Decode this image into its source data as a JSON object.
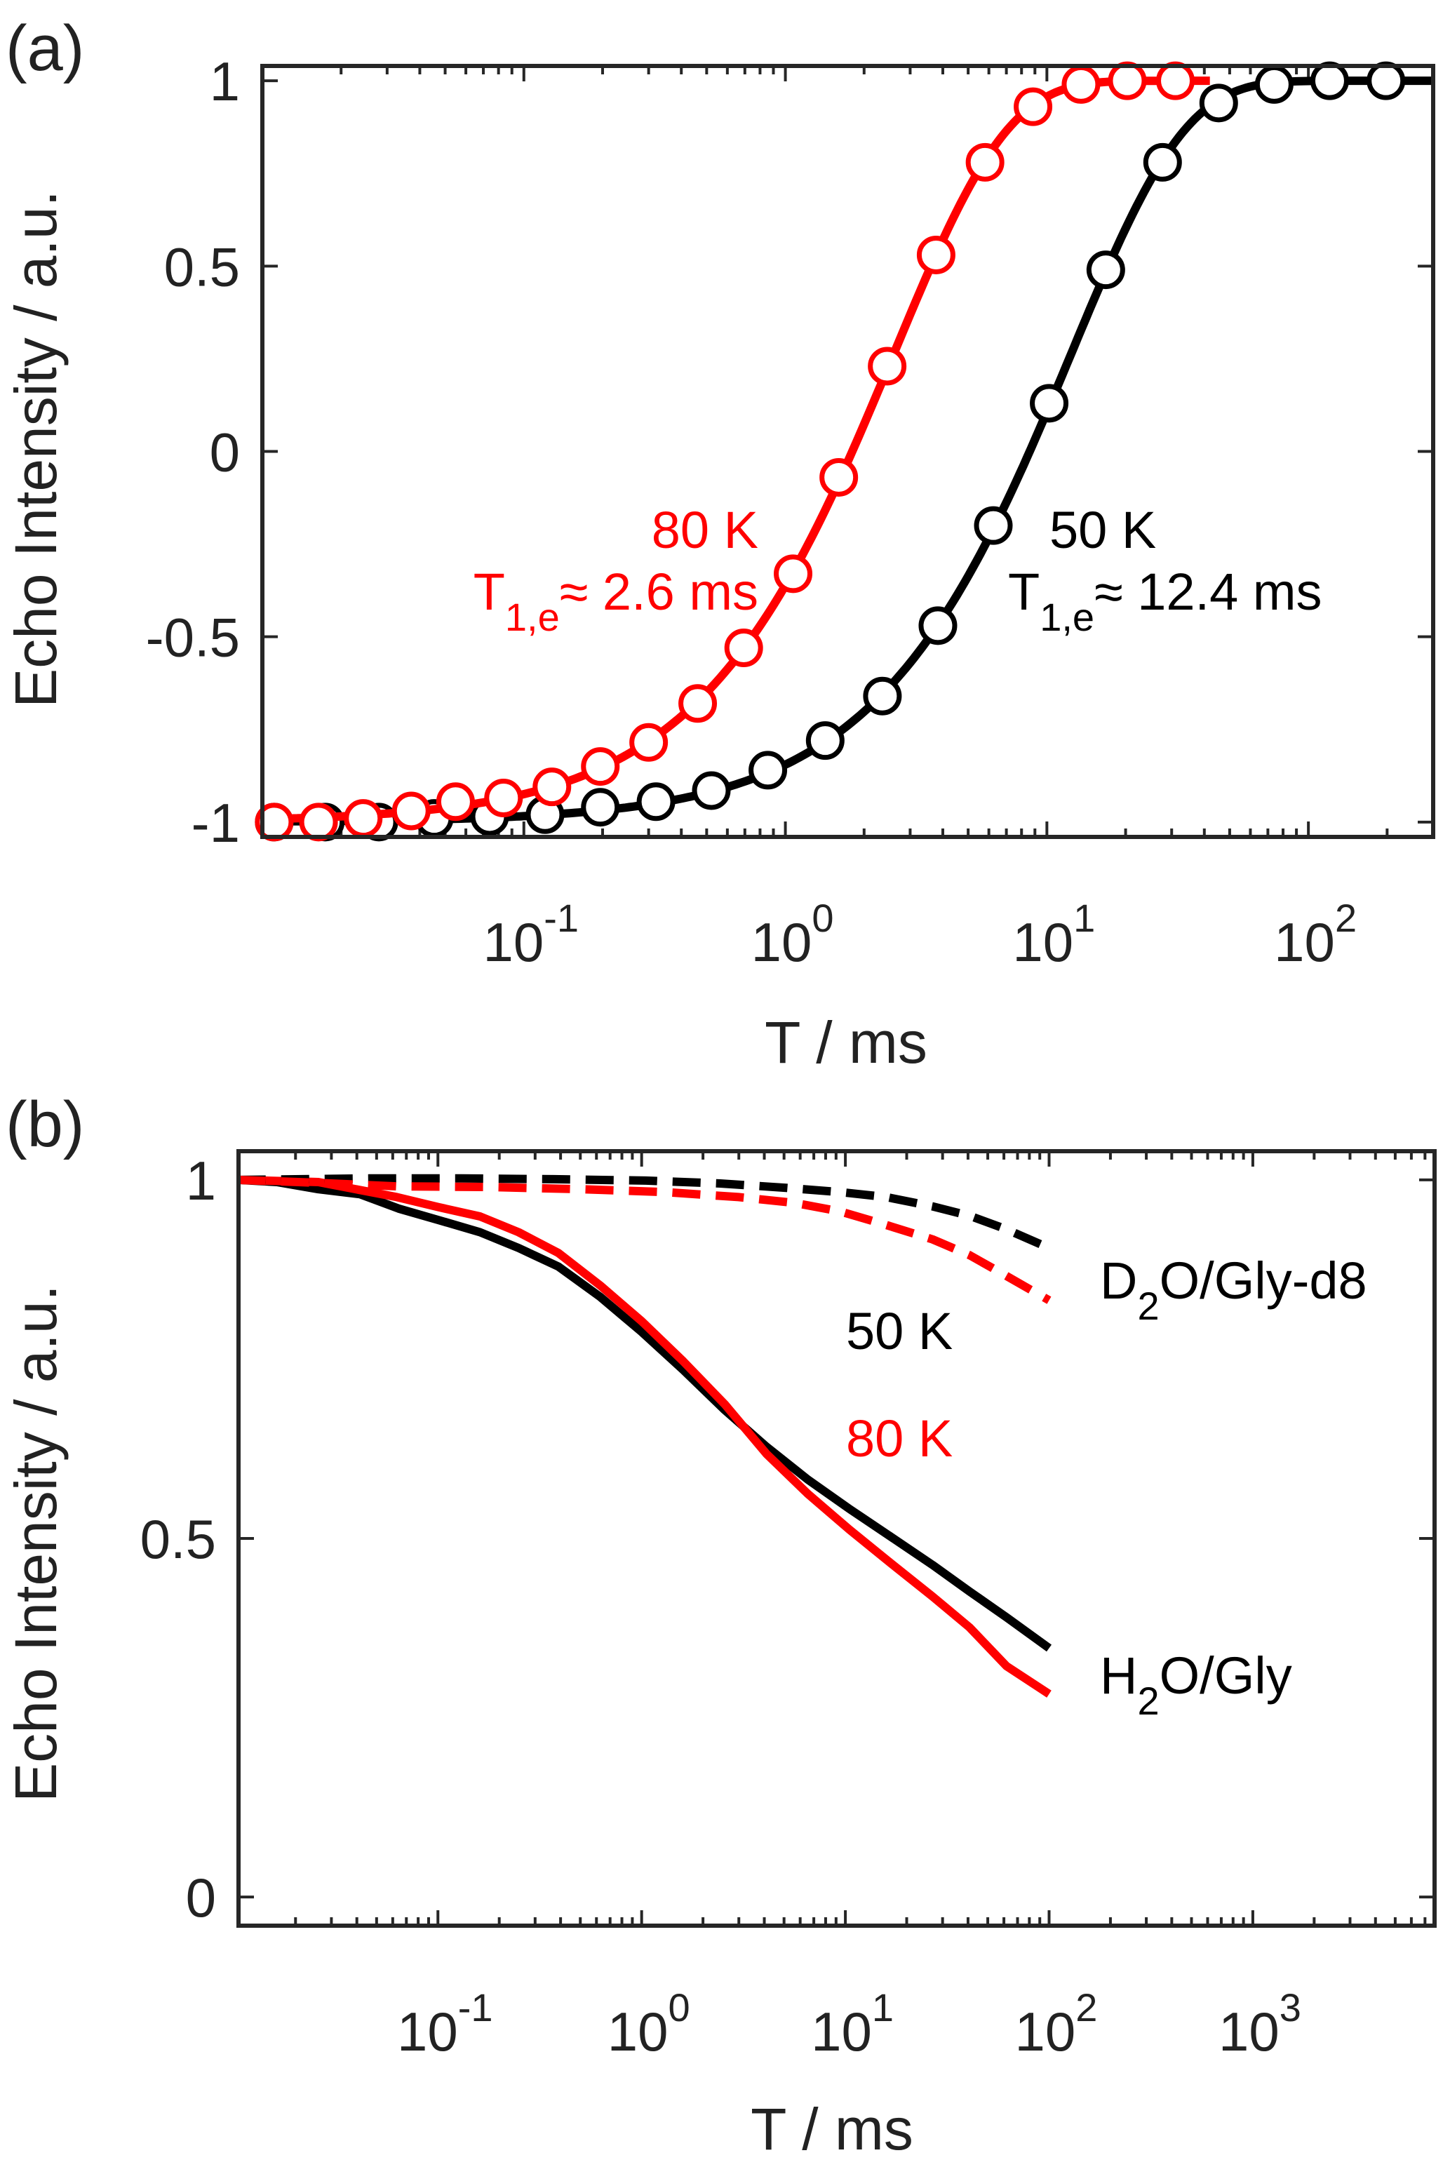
{
  "colors": {
    "black": "#000000",
    "red": "#ff0000",
    "axis": "#262626"
  },
  "chart_data": [
    {
      "panel_label": "(a)",
      "type": "scatter",
      "xscale": "log",
      "xlabel": "T / ms",
      "ylabel": "Echo Intensity / a.u.",
      "xlim": [
        0.01,
        300
      ],
      "ylim": [
        -1.04,
        1.04
      ],
      "yticks": [
        -1,
        -0.5,
        0,
        0.5,
        1
      ],
      "ytick_labels": [
        "-1",
        "-0.5",
        "0",
        "0.5",
        "1"
      ],
      "xticks": [
        0.1,
        1,
        10,
        100
      ],
      "xtick_labels": [
        {
          "base": "10",
          "exp": "-1"
        },
        {
          "base": "10",
          "exp": "0"
        },
        {
          "base": "10",
          "exp": "1"
        },
        {
          "base": "10",
          "exp": "2"
        }
      ],
      "annotations": [
        {
          "text": "80 K",
          "color": "red"
        },
        {
          "text_main": "T",
          "text_sub": "1,e",
          "text_rest": "≈ 2.6 ms",
          "color": "red"
        },
        {
          "text": "50 K",
          "color": "black"
        },
        {
          "text_main": "T",
          "text_sub": "1,e",
          "text_rest": "≈ 12.4 ms",
          "color": "black"
        }
      ],
      "series": [
        {
          "name": "50 K",
          "color": "black",
          "fit": {
            "model": "1-2*exp(-T/T1)",
            "T1": 12.4,
            "x_range": [
              0.01,
              300
            ]
          },
          "points": [
            [
              0.0111,
              -1
            ],
            [
              0.0174,
              -1
            ],
            [
              0.0279,
              -1
            ],
            [
              0.0454,
              -0.99
            ],
            [
              0.074,
              -0.985
            ],
            [
              0.1205,
              -0.98
            ],
            [
              0.196,
              -0.96
            ],
            [
              0.32,
              -0.945
            ],
            [
              0.521,
              -0.915
            ],
            [
              0.857,
              -0.86
            ],
            [
              1.42,
              -0.78
            ],
            [
              2.35,
              -0.66
            ],
            [
              3.83,
              -0.47
            ],
            [
              6.24,
              -0.2
            ],
            [
              10.2,
              0.13
            ],
            [
              16.8,
              0.49
            ],
            [
              27.7,
              0.78
            ],
            [
              45.4,
              0.94
            ],
            [
              74.0,
              0.99
            ],
            [
              120.6,
              1
            ],
            [
              198,
              1
            ]
          ]
        },
        {
          "name": "80 K",
          "color": "red",
          "fit": {
            "model": "1-2*exp(-T/T1)",
            "T1": 2.6,
            "x_range": [
              0.01,
              42
            ]
          },
          "points": [
            [
              0.0111,
              -1
            ],
            [
              0.0164,
              -1
            ],
            [
              0.0243,
              -0.99
            ],
            [
              0.0371,
              -0.97
            ],
            [
              0.0548,
              -0.945
            ],
            [
              0.0836,
              -0.935
            ],
            [
              0.128,
              -0.905
            ],
            [
              0.196,
              -0.85
            ],
            [
              0.3,
              -0.785
            ],
            [
              0.462,
              -0.68
            ],
            [
              0.693,
              -0.53
            ],
            [
              1.07,
              -0.33
            ],
            [
              1.6,
              -0.07
            ],
            [
              2.45,
              0.23
            ],
            [
              3.77,
              0.53
            ],
            [
              5.8,
              0.78
            ],
            [
              8.85,
              0.93
            ],
            [
              13.5,
              0.99
            ],
            [
              20.3,
              1
            ],
            [
              31.0,
              1
            ]
          ]
        }
      ]
    },
    {
      "panel_label": "(b)",
      "type": "line",
      "xscale": "log",
      "xlabel": "T / ms",
      "ylabel": "Echo Intensity / a.u.",
      "xlim": [
        0.0105,
        7800
      ],
      "ylim": [
        -0.04,
        1.04
      ],
      "yticks": [
        0,
        0.5,
        1
      ],
      "ytick_labels": [
        "0",
        "0.5",
        "1"
      ],
      "xticks": [
        0.1,
        1,
        10,
        100,
        1000
      ],
      "xtick_labels": [
        {
          "base": "10",
          "exp": "-1"
        },
        {
          "base": "10",
          "exp": "0"
        },
        {
          "base": "10",
          "exp": "1"
        },
        {
          "base": "10",
          "exp": "2"
        },
        {
          "base": "10",
          "exp": "3"
        }
      ],
      "annotations": [
        {
          "text_main": "D",
          "text_sub": "2",
          "text_rest": "O/Gly-d8",
          "color": "black"
        },
        {
          "text": "50 K",
          "color": "black"
        },
        {
          "text": "80 K",
          "color": "red"
        },
        {
          "text_main": "H",
          "text_sub": "2",
          "text_rest": "O/Gly",
          "color": "black"
        }
      ],
      "series": [
        {
          "name": "H2O/Gly 50 K",
          "color": "black",
          "style": "solid",
          "points": [
            [
              0.0104,
              1
            ],
            [
              0.0162,
              0.997
            ],
            [
              0.0259,
              0.987
            ],
            [
              0.0414,
              0.98
            ],
            [
              0.0641,
              0.96
            ],
            [
              0.1005,
              0.944
            ],
            [
              0.161,
              0.927
            ],
            [
              0.249,
              0.905
            ],
            [
              0.391,
              0.879
            ],
            [
              0.625,
              0.837
            ],
            [
              1,
              0.788
            ],
            [
              1.6,
              0.735
            ],
            [
              2.56,
              0.679
            ],
            [
              4.1,
              0.628
            ],
            [
              6.55,
              0.582
            ],
            [
              10.5,
              0.541
            ],
            [
              16.8,
              0.502
            ],
            [
              26.8,
              0.463
            ],
            [
              40.7,
              0.426
            ],
            [
              61.8,
              0.39
            ],
            [
              100,
              0.347
            ]
          ]
        },
        {
          "name": "H2O/Gly 80 K",
          "color": "red",
          "style": "solid",
          "points": [
            [
              0.0104,
              1
            ],
            [
              0.0259,
              0.997
            ],
            [
              0.0628,
              0.976
            ],
            [
              0.1005,
              0.962
            ],
            [
              0.161,
              0.949
            ],
            [
              0.249,
              0.927
            ],
            [
              0.391,
              0.898
            ],
            [
              0.625,
              0.853
            ],
            [
              1,
              0.803
            ],
            [
              1.6,
              0.747
            ],
            [
              2.56,
              0.687
            ],
            [
              4.1,
              0.618
            ],
            [
              6.55,
              0.562
            ],
            [
              10.5,
              0.512
            ],
            [
              16.8,
              0.465
            ],
            [
              26.8,
              0.419
            ],
            [
              40.7,
              0.376
            ],
            [
              61.8,
              0.322
            ],
            [
              100,
              0.283
            ]
          ]
        },
        {
          "name": "D2O/Gly-d8 50 K",
          "color": "black",
          "style": "dashed",
          "points": [
            [
              0.0104,
              1
            ],
            [
              0.0459,
              1.002
            ],
            [
              0.1305,
              1.002
            ],
            [
              0.371,
              1.001
            ],
            [
              1.05,
              0.999
            ],
            [
              2.43,
              0.995
            ],
            [
              5.05,
              0.989
            ],
            [
              9.44,
              0.983
            ],
            [
              15.9,
              0.976
            ],
            [
              26.8,
              0.963
            ],
            [
              40.7,
              0.95
            ],
            [
              61.8,
              0.931
            ],
            [
              100,
              0.905
            ]
          ]
        },
        {
          "name": "D2O/Gly-d8 80 K",
          "color": "red",
          "style": "dashed",
          "points": [
            [
              0.0104,
              1
            ],
            [
              0.0207,
              0.997
            ],
            [
              0.0628,
              0.991
            ],
            [
              0.179,
              0.99
            ],
            [
              0.507,
              0.987
            ],
            [
              1.3,
              0.983
            ],
            [
              2.99,
              0.976
            ],
            [
              5.6,
              0.968
            ],
            [
              9.44,
              0.956
            ],
            [
              15.9,
              0.937
            ],
            [
              26.8,
              0.917
            ],
            [
              40.7,
              0.895
            ],
            [
              61.8,
              0.866
            ],
            [
              100,
              0.832
            ]
          ]
        }
      ]
    }
  ]
}
